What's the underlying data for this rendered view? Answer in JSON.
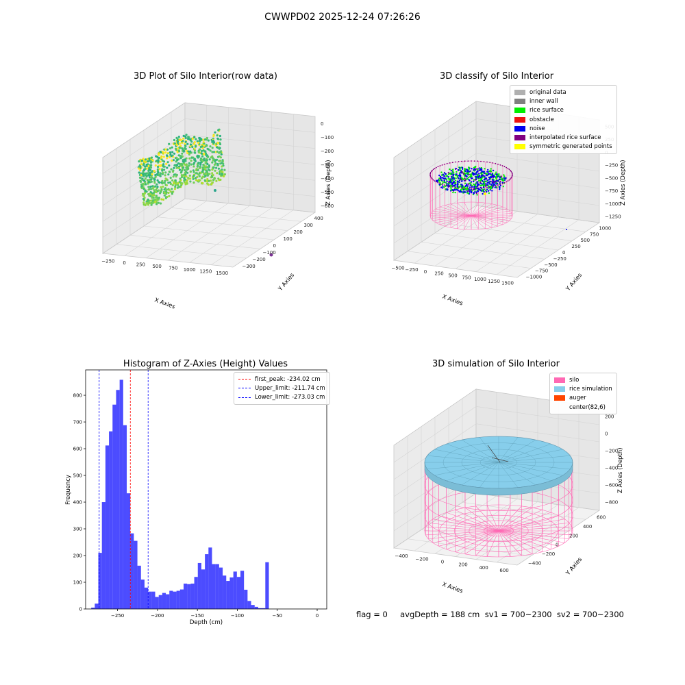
{
  "suptitle": "CWWPD02 2025-12-24 07:26:26",
  "panels": {
    "raw": {
      "title": "3D Plot of Silo Interior(row data)",
      "xlabel": "X Axies",
      "ylabel": "Y Axies",
      "zlabel": "Z Axies (Depth)",
      "xticks": [
        "−250",
        "0",
        "250",
        "500",
        "750",
        "1000",
        "1250",
        "1500"
      ],
      "yticks": [
        "−300",
        "−200",
        "−100",
        "0",
        "100",
        "200",
        "300",
        "400"
      ],
      "zticks": [
        "0",
        "−100",
        "−200",
        "−300",
        "−400",
        "−500",
        "−600"
      ]
    },
    "classify": {
      "title": "3D classify of Silo Interior",
      "xlabel": "X Axies",
      "ylabel": "Y Axies",
      "zlabel": "Z Axies (Depth)",
      "xticks": [
        "−500",
        "−250",
        "0",
        "250",
        "500",
        "750",
        "1000",
        "1250",
        "1500"
      ],
      "yticks": [
        "−1000",
        "−750",
        "−500",
        "−250",
        "0",
        "250",
        "500",
        "750",
        "1000"
      ],
      "zticks": [
        "500",
        "250",
        "0",
        "−250",
        "−500",
        "−750",
        "−1000",
        "−1250"
      ],
      "legend": [
        {
          "label": "original data",
          "color": "#b0b0b0"
        },
        {
          "label": "inner wall",
          "color": "#808080"
        },
        {
          "label": "rice surface",
          "color": "#00ee00"
        },
        {
          "label": "obstacle",
          "color": "#ee1111"
        },
        {
          "label": "noise",
          "color": "#0000ee"
        },
        {
          "label": "interpolated rice surface",
          "color": "#800080"
        },
        {
          "label": "symmetric generated points",
          "color": "#ffff00"
        }
      ]
    },
    "simulation": {
      "title": "3D simulation of Silo Interior",
      "xlabel": "X Axies",
      "ylabel": "Y Axies",
      "zlabel": "Z Axies (Depth)",
      "xticks": [
        "−400",
        "−200",
        "0",
        "200",
        "400",
        "600"
      ],
      "yticks": [
        "−400",
        "−200",
        "0",
        "200",
        "400",
        "600"
      ],
      "zticks": [
        "200",
        "0",
        "−200",
        "−400",
        "−600",
        "−800"
      ],
      "legend": [
        {
          "label": "silo",
          "color": "#ff69b4"
        },
        {
          "label": "rice simulation",
          "color": "#87ceeb"
        },
        {
          "label": "auger",
          "color": "#ff4500"
        },
        {
          "label": "center(82,6)",
          "color": ""
        }
      ]
    }
  },
  "status": {
    "text": "flag = 0     avgDepth = 188 cm  sv1 = 700~2300  sv2 = 700~2300"
  },
  "chart_data": {
    "type": "bar",
    "title": "Histogram of Z-Axies (Height) Values",
    "xlabel": "Depth (cm)",
    "ylabel": "Frequency",
    "xlim": [
      -290,
      12
    ],
    "ylim": [
      0,
      895
    ],
    "xticks": [
      -250,
      -200,
      -150,
      -100,
      -50,
      0
    ],
    "yticks": [
      0,
      100,
      200,
      300,
      400,
      500,
      600,
      700,
      800
    ],
    "bin_start": -283,
    "bin_width": 4.45,
    "counts": [
      5,
      20,
      210,
      400,
      612,
      665,
      765,
      820,
      858,
      688,
      433,
      283,
      255,
      162,
      110,
      80,
      65,
      65,
      45,
      52,
      60,
      55,
      68,
      65,
      68,
      73,
      95,
      93,
      95,
      120,
      172,
      148,
      205,
      230,
      168,
      168,
      155,
      125,
      105,
      118,
      140,
      120,
      143,
      72,
      30,
      15,
      8,
      3,
      3,
      175
    ],
    "color": "#0000ff",
    "vlines": [
      {
        "label": "first_peak: -234.02 cm",
        "x": -234.02,
        "color": "#ff0000"
      },
      {
        "label": "Upper_limit: -211.74 cm",
        "x": -211.74,
        "color": "#0000ff"
      },
      {
        "label": "Lower_limit: -273.03 cm",
        "x": -273.03,
        "color": "#0000ff"
      }
    ],
    "legend_position": "upper right"
  }
}
